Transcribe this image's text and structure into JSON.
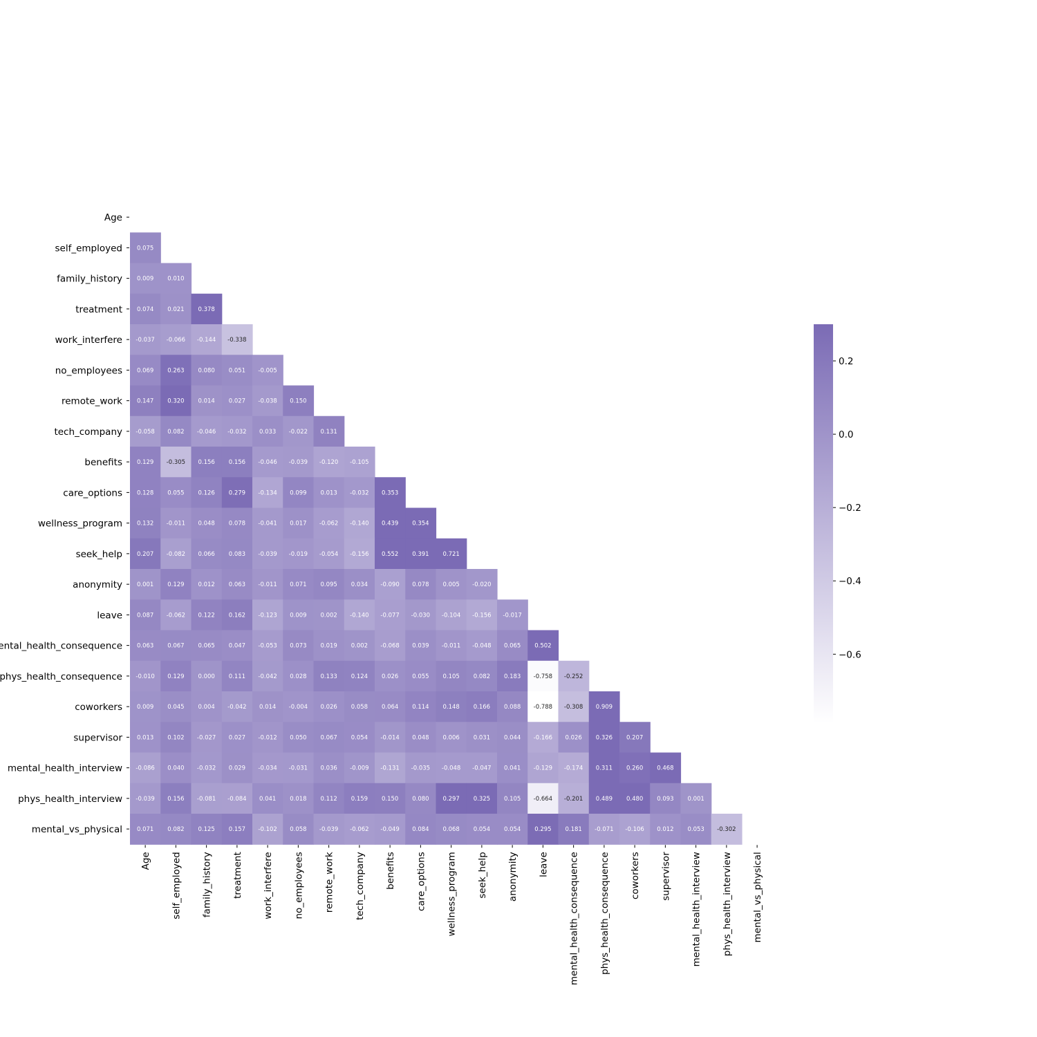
{
  "chart_data": {
    "type": "heatmap",
    "title": "",
    "xlabel": "",
    "ylabel": "",
    "variables": [
      "Age",
      "self_employed",
      "family_history",
      "treatment",
      "work_interfere",
      "no_employees",
      "remote_work",
      "tech_company",
      "benefits",
      "care_options",
      "wellness_program",
      "seek_help",
      "anonymity",
      "leave",
      "mental_health_consequence",
      "phys_health_consequence",
      "coworkers",
      "supervisor",
      "mental_health_interview",
      "phys_health_interview",
      "mental_vs_physical"
    ],
    "mask": "upper triangle including diagonal",
    "values": [
      [],
      [
        0.075
      ],
      [
        0.009,
        0.01
      ],
      [
        0.074,
        0.021,
        0.378
      ],
      [
        -0.037,
        -0.066,
        -0.144,
        -0.338
      ],
      [
        0.069,
        0.263,
        0.08,
        0.051,
        -0.005
      ],
      [
        0.147,
        0.32,
        0.014,
        0.027,
        -0.038,
        0.15
      ],
      [
        -0.058,
        0.082,
        -0.046,
        -0.032,
        0.033,
        -0.022,
        0.131
      ],
      [
        0.129,
        -0.305,
        0.156,
        0.156,
        -0.046,
        -0.039,
        -0.12,
        -0.105
      ],
      [
        0.128,
        0.055,
        0.126,
        0.279,
        -0.134,
        0.099,
        0.013,
        -0.032,
        0.353
      ],
      [
        0.132,
        -0.011,
        0.048,
        0.078,
        -0.041,
        0.017,
        -0.062,
        -0.14,
        0.439,
        0.354
      ],
      [
        0.207,
        -0.082,
        0.066,
        0.083,
        -0.039,
        -0.019,
        -0.054,
        -0.156,
        0.552,
        0.391,
        0.721
      ],
      [
        0.001,
        0.129,
        0.012,
        0.063,
        -0.011,
        0.071,
        0.095,
        0.034,
        -0.09,
        0.078,
        0.005,
        -0.02
      ],
      [
        0.087,
        -0.062,
        0.122,
        0.162,
        -0.123,
        0.009,
        0.002,
        -0.14,
        -0.077,
        -0.03,
        -0.104,
        -0.156,
        -0.017
      ],
      [
        0.063,
        0.067,
        0.065,
        0.047,
        -0.053,
        0.073,
        0.019,
        0.002,
        -0.068,
        0.039,
        -0.011,
        -0.048,
        0.065,
        0.502
      ],
      [
        -0.01,
        0.129,
        0.0,
        0.111,
        -0.042,
        0.028,
        0.133,
        0.124,
        0.026,
        0.055,
        0.105,
        0.082,
        0.183,
        -0.758,
        -0.252
      ],
      [
        0.009,
        0.045,
        0.004,
        -0.042,
        0.014,
        -0.004,
        0.026,
        0.058,
        0.064,
        0.114,
        0.148,
        0.166,
        0.088,
        -0.788,
        -0.308,
        0.909
      ],
      [
        0.013,
        0.102,
        -0.027,
        0.027,
        -0.012,
        0.05,
        0.067,
        0.054,
        -0.014,
        0.048,
        0.006,
        0.031,
        0.044,
        -0.166,
        0.026,
        0.326,
        0.207
      ],
      [
        -0.086,
        0.04,
        -0.032,
        0.029,
        -0.034,
        -0.031,
        0.036,
        -0.009,
        -0.131,
        -0.035,
        -0.048,
        -0.047,
        0.041,
        -0.129,
        -0.174,
        0.311,
        0.26,
        0.468
      ],
      [
        -0.039,
        0.156,
        -0.081,
        -0.084,
        0.041,
        0.018,
        0.112,
        0.159,
        0.15,
        0.08,
        0.297,
        0.325,
        0.105,
        -0.664,
        -0.201,
        0.489,
        0.48,
        0.093,
        0.001
      ],
      [
        0.071,
        0.082,
        0.125,
        0.157,
        -0.102,
        0.058,
        -0.039,
        -0.062,
        -0.049,
        0.084,
        0.068,
        0.054,
        0.054,
        0.295,
        0.181,
        -0.071,
        -0.106,
        0.012,
        0.053,
        -0.302
      ]
    ],
    "colorbar": {
      "vmin": -0.788,
      "vmax": 0.3,
      "ticks": [
        0.2,
        0.0,
        -0.2,
        -0.4,
        -0.6
      ],
      "tick_labels": [
        "0.2",
        "0.0",
        "−0.2",
        "−0.4",
        "−0.6"
      ],
      "color_low": "#ffffff",
      "color_high": "#7b6bb5"
    },
    "grid": false,
    "legend": "colorbar right"
  }
}
